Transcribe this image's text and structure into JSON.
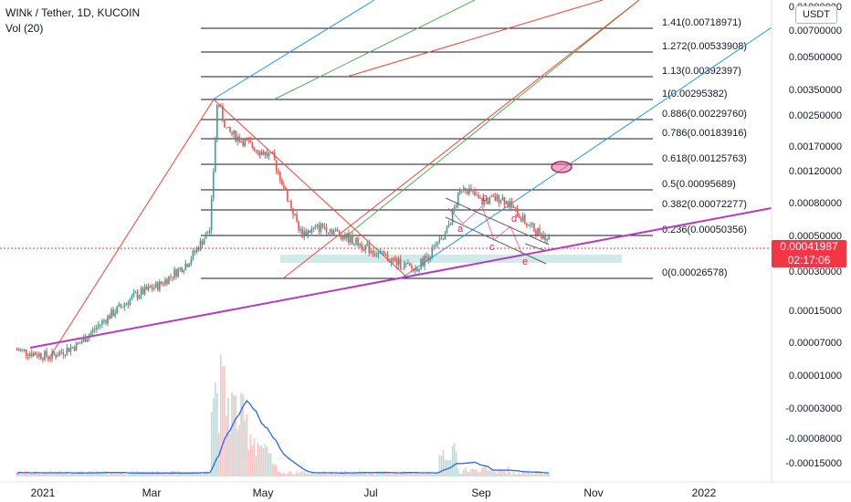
{
  "header": {
    "title": "WINk / Tether, 1D, KUCOIN",
    "indicator": "Vol (20)"
  },
  "price_scale": {
    "currency_button": "USDT",
    "labels": [
      "0.01000000",
      "0.00700000",
      "0.00500000",
      "0.00350000",
      "0.00250000",
      "0.00170000",
      "0.00120000",
      "0.00080000",
      "0.00050000",
      "0.00030000",
      "0.00015000",
      "0.00007000",
      "0.00001000",
      "-0.00003000",
      "-0.00008000",
      "-0.00015000"
    ],
    "last_price": "0.00041987",
    "countdown": "02:17:06"
  },
  "time_axis": {
    "labels": [
      "2021",
      "Mar",
      "May",
      "Jul",
      "Sep",
      "Nov",
      "2022"
    ]
  },
  "fib_levels": [
    {
      "label": "1.41(0.00718971)"
    },
    {
      "label": "1.272(0.00533908)"
    },
    {
      "label": "1.13(0.00392397)"
    },
    {
      "label": "1(0.00295382)"
    },
    {
      "label": "0.886(0.00229760)"
    },
    {
      "label": "0.786(0.00183916)"
    },
    {
      "label": "0.618(0.00125763)"
    },
    {
      "label": "0.5(0.00095689)"
    },
    {
      "label": "0.382(0.00072277)"
    },
    {
      "label": "0.236(0.00050356)"
    },
    {
      "label": "0(0.00026578)"
    }
  ],
  "wave_labels": [
    "a",
    "b",
    "c",
    "d",
    "e"
  ],
  "colors": {
    "up": "#26a69a",
    "down": "#ef5350",
    "fib": "#131722",
    "purple": "#b33cc1",
    "blue": "#2196f3",
    "green": "#4caf50",
    "red": "#f44336",
    "vol_ma": "#2962ff",
    "support_zone": "#b9e3df",
    "last_price": "#f23645"
  },
  "chart_data": {
    "type": "candlestick",
    "title": "WINk / Tether, 1D, KUCOIN",
    "x": [
      "2021",
      "Mar",
      "May",
      "Jul",
      "Sep",
      "Nov",
      "2022"
    ],
    "price_path": [
      [
        "2020-12-18",
        8.8e-05
      ],
      [
        "2021-01-05",
        8e-05
      ],
      [
        "2021-01-20",
        9.5e-05
      ],
      [
        "2021-02-05",
        0.00014
      ],
      [
        "2021-02-20",
        0.00019
      ],
      [
        "2021-03-05",
        0.00022
      ],
      [
        "2021-03-20",
        0.0003
      ],
      [
        "2021-04-01",
        0.00048
      ],
      [
        "2021-04-05",
        0.00295
      ],
      [
        "2021-04-10",
        0.0019
      ],
      [
        "2021-04-25",
        0.0015
      ],
      [
        "2021-05-05",
        0.0013
      ],
      [
        "2021-05-20",
        0.00045
      ],
      [
        "2021-06-01",
        0.0005
      ],
      [
        "2021-06-15",
        0.00042
      ],
      [
        "2021-07-05",
        0.00032
      ],
      [
        "2021-07-20",
        0.00027
      ],
      [
        "2021-08-05",
        0.00042
      ],
      [
        "2021-08-15",
        0.0009
      ],
      [
        "2021-08-25",
        0.0007
      ],
      [
        "2021-09-05",
        0.00075
      ],
      [
        "2021-09-20",
        0.0005
      ],
      [
        "2021-10-01",
        0.00042
      ]
    ],
    "volume_peak_date": "2021-04-05",
    "fib_retracement": {
      "from": 0.00026578,
      "to": 0.00295382
    },
    "y_scale": "log",
    "legend": "none"
  }
}
